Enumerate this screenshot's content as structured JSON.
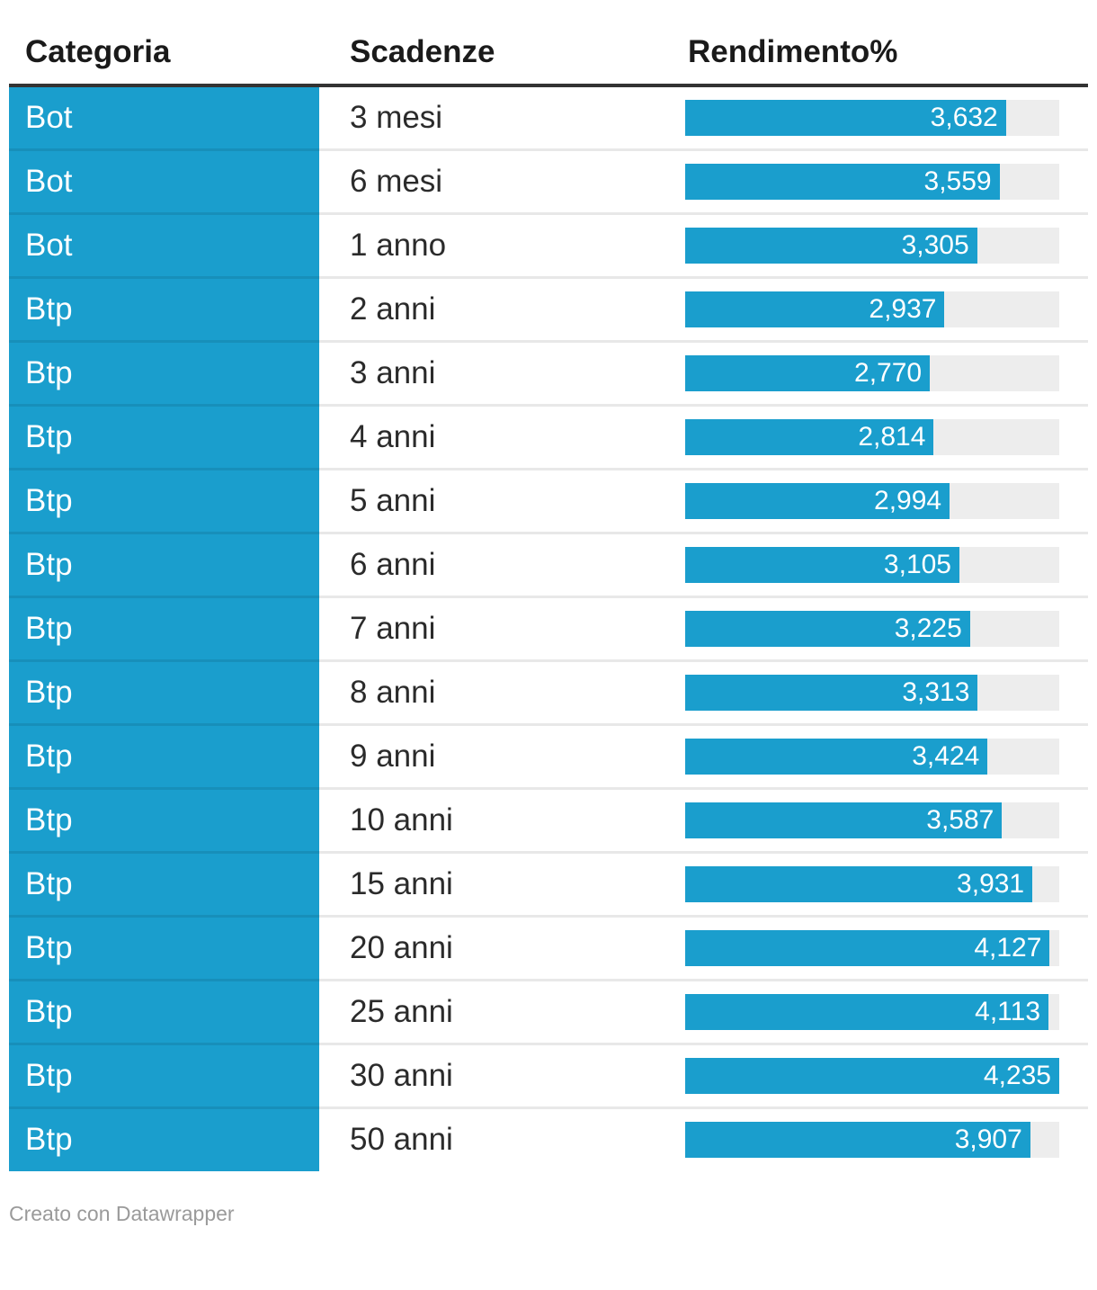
{
  "table": {
    "columns": [
      "Categoria",
      "Scadenze",
      "Rendimento%"
    ],
    "scale_max": 4.235,
    "rows": [
      {
        "categoria": "Bot",
        "scadenze": "3 mesi",
        "rendimento_label": "3,632",
        "rendimento_value": 3.632
      },
      {
        "categoria": "Bot",
        "scadenze": "6 mesi",
        "rendimento_label": "3,559",
        "rendimento_value": 3.559
      },
      {
        "categoria": "Bot",
        "scadenze": "1 anno",
        "rendimento_label": "3,305",
        "rendimento_value": 3.305
      },
      {
        "categoria": "Btp",
        "scadenze": "2 anni",
        "rendimento_label": "2,937",
        "rendimento_value": 2.937
      },
      {
        "categoria": "Btp",
        "scadenze": "3 anni",
        "rendimento_label": "2,770",
        "rendimento_value": 2.77
      },
      {
        "categoria": "Btp",
        "scadenze": "4 anni",
        "rendimento_label": "2,814",
        "rendimento_value": 2.814
      },
      {
        "categoria": "Btp",
        "scadenze": "5 anni",
        "rendimento_label": "2,994",
        "rendimento_value": 2.994
      },
      {
        "categoria": "Btp",
        "scadenze": "6 anni",
        "rendimento_label": "3,105",
        "rendimento_value": 3.105
      },
      {
        "categoria": "Btp",
        "scadenze": "7 anni",
        "rendimento_label": "3,225",
        "rendimento_value": 3.225
      },
      {
        "categoria": "Btp",
        "scadenze": "8 anni",
        "rendimento_label": "3,313",
        "rendimento_value": 3.313
      },
      {
        "categoria": "Btp",
        "scadenze": "9 anni",
        "rendimento_label": "3,424",
        "rendimento_value": 3.424
      },
      {
        "categoria": "Btp",
        "scadenze": "10 anni",
        "rendimento_label": "3,587",
        "rendimento_value": 3.587
      },
      {
        "categoria": "Btp",
        "scadenze": "15 anni",
        "rendimento_label": "3,931",
        "rendimento_value": 3.931
      },
      {
        "categoria": "Btp",
        "scadenze": "20 anni",
        "rendimento_label": "4,127",
        "rendimento_value": 4.127
      },
      {
        "categoria": "Btp",
        "scadenze": "25 anni",
        "rendimento_label": "4,113",
        "rendimento_value": 4.113
      },
      {
        "categoria": "Btp",
        "scadenze": "30 anni",
        "rendimento_label": "4,235",
        "rendimento_value": 4.235
      },
      {
        "categoria": "Btp",
        "scadenze": "50 anni",
        "rendimento_label": "3,907",
        "rendimento_value": 3.907
      }
    ]
  },
  "footer": {
    "credit": "Creato con Datawrapper"
  },
  "colors": {
    "accent_blue": "#1a9ecd",
    "bar_track": "#ededed",
    "header_border": "#333333",
    "row_separator": "#e8e8e8",
    "body_text": "#2b2b2b",
    "footer_text": "#9a9a9a",
    "bar_label": "#ffffff"
  },
  "chart_data": {
    "type": "bar",
    "orientation": "horizontal",
    "title": "",
    "columns": [
      "Categoria",
      "Scadenze",
      "Rendimento%"
    ],
    "categories": [
      "3 mesi",
      "6 mesi",
      "1 anno",
      "2 anni",
      "3 anni",
      "4 anni",
      "5 anni",
      "6 anni",
      "7 anni",
      "8 anni",
      "9 anni",
      "10 anni",
      "15 anni",
      "20 anni",
      "25 anni",
      "30 anni",
      "50 anni"
    ],
    "row_groups": [
      "Bot",
      "Bot",
      "Bot",
      "Btp",
      "Btp",
      "Btp",
      "Btp",
      "Btp",
      "Btp",
      "Btp",
      "Btp",
      "Btp",
      "Btp",
      "Btp",
      "Btp",
      "Btp",
      "Btp"
    ],
    "series": [
      {
        "name": "Rendimento%",
        "values": [
          3.632,
          3.559,
          3.305,
          2.937,
          2.77,
          2.814,
          2.994,
          3.105,
          3.225,
          3.313,
          3.424,
          3.587,
          3.931,
          4.127,
          4.113,
          4.235,
          3.907
        ]
      }
    ],
    "value_labels": [
      "3,632",
      "3,559",
      "3,305",
      "2,937",
      "2,770",
      "2,814",
      "2,994",
      "3,105",
      "3,225",
      "3,313",
      "3,424",
      "3,587",
      "3,931",
      "4,127",
      "4,113",
      "4,235",
      "3,907"
    ],
    "xlim": [
      0,
      4.235
    ],
    "grid": false,
    "legend_position": "none",
    "annotations": [
      "Creato con Datawrapper"
    ]
  }
}
